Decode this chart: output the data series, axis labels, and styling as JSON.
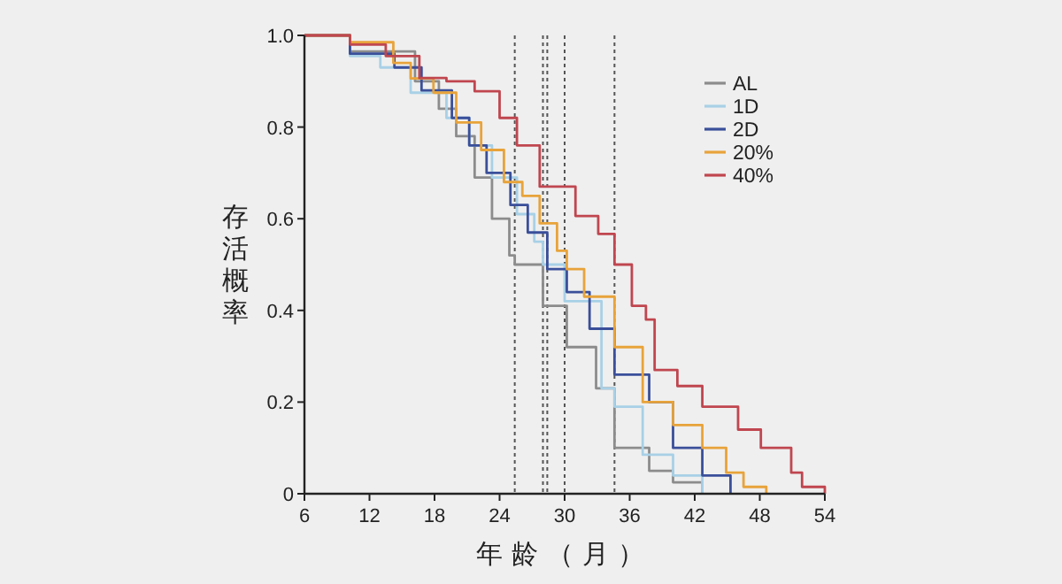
{
  "chart_data": {
    "type": "step",
    "xlabel": "年龄（月）",
    "ylabel": "存活概率",
    "xlim": [
      6,
      54
    ],
    "ylim": [
      0,
      1
    ],
    "xticks": [
      6,
      12,
      18,
      24,
      30,
      36,
      42,
      48,
      54
    ],
    "yticks": [
      0,
      0.2,
      0.4,
      0.6,
      0.8,
      {
        "value": 1,
        "label": "1.0"
      }
    ],
    "legend": "top right",
    "marker": "none",
    "line_style": "solid",
    "grid": false,
    "series": [
      {
        "name": "AL",
        "color": "#8c8c8c",
        "x": [
          6,
          10.2,
          16.2,
          18.4,
          20,
          21.7,
          23.3,
          24.9,
          25.4,
          28,
          30.2,
          32.9,
          34.6,
          37.8,
          40,
          42.7
        ],
        "values": [
          1,
          0.965,
          0.9,
          0.84,
          0.78,
          0.69,
          0.6,
          0.52,
          0.5,
          0.41,
          0.32,
          0.23,
          0.1,
          0.05,
          0.025,
          0
        ]
      },
      {
        "name": "1D",
        "color": "#a8d0e6",
        "x": [
          6,
          10.2,
          13,
          15.8,
          19.1,
          21.2,
          23.3,
          25.6,
          27.2,
          28,
          30,
          33.4,
          34.6,
          37.2,
          40,
          42.7
        ],
        "values": [
          1,
          0.955,
          0.93,
          0.875,
          0.82,
          0.76,
          0.69,
          0.61,
          0.55,
          0.5,
          0.42,
          0.23,
          0.19,
          0.085,
          0.04,
          0
        ]
      },
      {
        "name": "2D",
        "color": "#3a4f9a",
        "x": [
          6,
          10.2,
          14.3,
          16.8,
          19.6,
          21.2,
          22.8,
          25,
          26.6,
          28.4,
          30.2,
          32.3,
          34.6,
          37.8,
          40,
          42.7,
          45.3
        ],
        "values": [
          1,
          0.96,
          0.93,
          0.88,
          0.82,
          0.76,
          0.7,
          0.63,
          0.57,
          0.49,
          0.44,
          0.36,
          0.26,
          0.2,
          0.1,
          0.04,
          0
        ]
      },
      {
        "name": "20%",
        "color": "#e8a33a",
        "x": [
          6,
          10.2,
          14.2,
          15.8,
          17.9,
          20,
          22.3,
          24.4,
          26.1,
          27.7,
          29.3,
          30.2,
          31.8,
          34.6,
          37.2,
          40,
          42.7,
          44.9,
          46.5,
          48.6
        ],
        "values": [
          1,
          0.985,
          0.94,
          0.906,
          0.875,
          0.81,
          0.75,
          0.68,
          0.65,
          0.59,
          0.53,
          0.49,
          0.43,
          0.32,
          0.2,
          0.15,
          0.1,
          0.046,
          0.015,
          0
        ]
      },
      {
        "name": "40%",
        "color": "#c0464f",
        "x": [
          6,
          10.2,
          13.5,
          16.6,
          19.1,
          21.7,
          24,
          25.6,
          27.7,
          31,
          33.1,
          34.6,
          36.2,
          37.5,
          38.3,
          40.4,
          42.7,
          46,
          48.1,
          50.9,
          51.9,
          54
        ],
        "values": [
          1,
          0.98,
          0.955,
          0.907,
          0.9,
          0.878,
          0.82,
          0.76,
          0.67,
          0.606,
          0.567,
          0.5,
          0.41,
          0.38,
          0.27,
          0.235,
          0.19,
          0.14,
          0.1,
          0.046,
          0.015,
          0
        ]
      }
    ],
    "ref_lines": [
      {
        "axis": "x",
        "value": 25.4,
        "color": "#555555",
        "line_style": "dotted"
      },
      {
        "axis": "x",
        "value": 28,
        "color": "#555555",
        "line_style": "dotted"
      },
      {
        "axis": "x",
        "value": 28.4,
        "color": "#555555",
        "line_style": "dotted"
      },
      {
        "axis": "x",
        "value": 30,
        "color": "#555555",
        "line_style": "dotted"
      },
      {
        "axis": "x",
        "value": 34.6,
        "color": "#555555",
        "line_style": "dotted"
      }
    ]
  }
}
